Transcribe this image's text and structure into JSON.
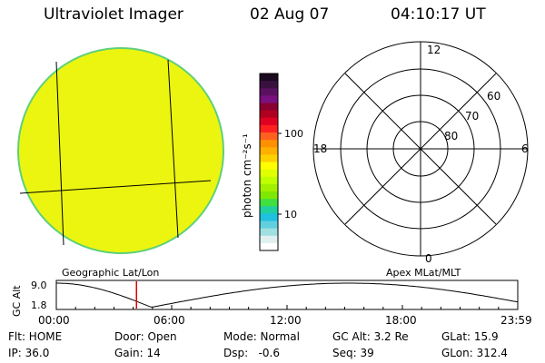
{
  "header": {
    "title": "Ultraviolet Imager",
    "date": "02 Aug 07",
    "time": "04:10:17 UT"
  },
  "colorbar": {
    "unit_label": "photon cm⁻²s⁻¹",
    "tick_labels": [
      "100",
      "10"
    ],
    "colors": [
      "#1a0a1f",
      "#3a1040",
      "#5a1060",
      "#7a1080",
      "#8a0030",
      "#b00020",
      "#e00020",
      "#ff2020",
      "#ff6020",
      "#ff9000",
      "#ffb000",
      "#ffd000",
      "#ffff00",
      "#e0ff00",
      "#c0ff00",
      "#a0f000",
      "#80e800",
      "#40e040",
      "#20d0a0",
      "#20c0e0",
      "#60d0e0",
      "#a0e0e0",
      "#e0f0f0",
      "#ffffff"
    ]
  },
  "polar": {
    "mlt_labels": {
      "top": "12",
      "left": "18",
      "right": "6",
      "bottom": "0"
    },
    "mlat_labels": [
      "60",
      "70",
      "80"
    ]
  },
  "timeline": {
    "left_caption": "Geographic Lat/Lon",
    "right_caption": "Apex MLat/MLT",
    "axis_label": "GC Alt",
    "y_labels": [
      "9.0",
      "1.8"
    ],
    "x_labels": [
      "00:00",
      "06:00",
      "12:00",
      "18:00",
      "23:59"
    ],
    "marker_time_hours": 4.17,
    "marker_color": "#dd0000"
  },
  "info": {
    "row1": [
      "Flt: HOME",
      "Door: Open",
      "Mode: Normal",
      "GC Alt: 3.2 Re",
      "GLat: 15.9"
    ],
    "row2": [
      "IP: 36.0",
      "Gain: 14",
      "Dsp:   -0.6",
      "Seq: 39",
      "GLon: 312.4"
    ]
  },
  "image_colors": {
    "disk_fill": "#ecf510",
    "disk_edge": "#5fd07a"
  }
}
